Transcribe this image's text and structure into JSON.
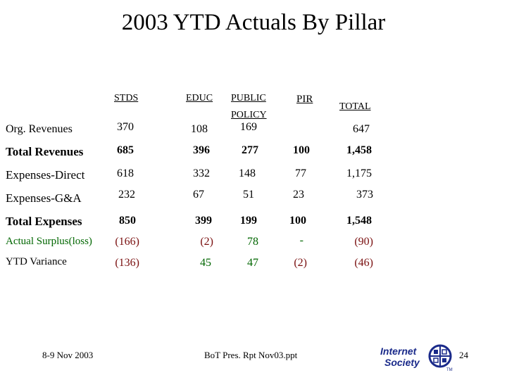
{
  "title": "2003 YTD Actuals By Pillar",
  "columns": {
    "stds": "STDS",
    "educ": "EDUC",
    "public": "PUBLIC",
    "policy": "POLICY",
    "pir": "PIR",
    "total": "TOTAL"
  },
  "rows": [
    {
      "label": "Org. Revenues",
      "stds": "370",
      "educ": "108",
      "public_policy": "169",
      "pir": "",
      "total": "647"
    },
    {
      "label": "Total Revenues",
      "stds": "685",
      "educ": "396",
      "public_policy": "277",
      "pir": "100",
      "total": "1,458"
    },
    {
      "label": "Expenses-Direct",
      "stds": "618",
      "educ": "332",
      "public_policy": "148",
      "pir": "77",
      "total": "1,175"
    },
    {
      "label": "Expenses-G&A",
      "stds": "232",
      "educ": "67",
      "public_policy": "51",
      "pir": "23",
      "total": "373"
    },
    {
      "label": "Total Expenses",
      "stds": "850",
      "educ": "399",
      "public_policy": "199",
      "pir": "100",
      "total": "1,548"
    },
    {
      "label": "Actual Surplus(loss)",
      "stds": "(166)",
      "educ": "(2)",
      "public_policy": "78",
      "pir": "-",
      "total": "(90)"
    },
    {
      "label": "YTD Variance",
      "stds": "(136)",
      "educ": "45",
      "public_policy": "47",
      "pir": "(2)",
      "total": "(46)"
    }
  ],
  "footer": {
    "date": "8-9 Nov 2003",
    "report": "BoT Pres. Rpt Nov03.ppt",
    "page": "24",
    "logo_text": {
      "line1": "Internet",
      "line2": "Society",
      "tm": "TM"
    }
  },
  "colors": {
    "negative": "#7a1010",
    "positive": "#006600",
    "logo_blue": "#1a2a8a"
  }
}
